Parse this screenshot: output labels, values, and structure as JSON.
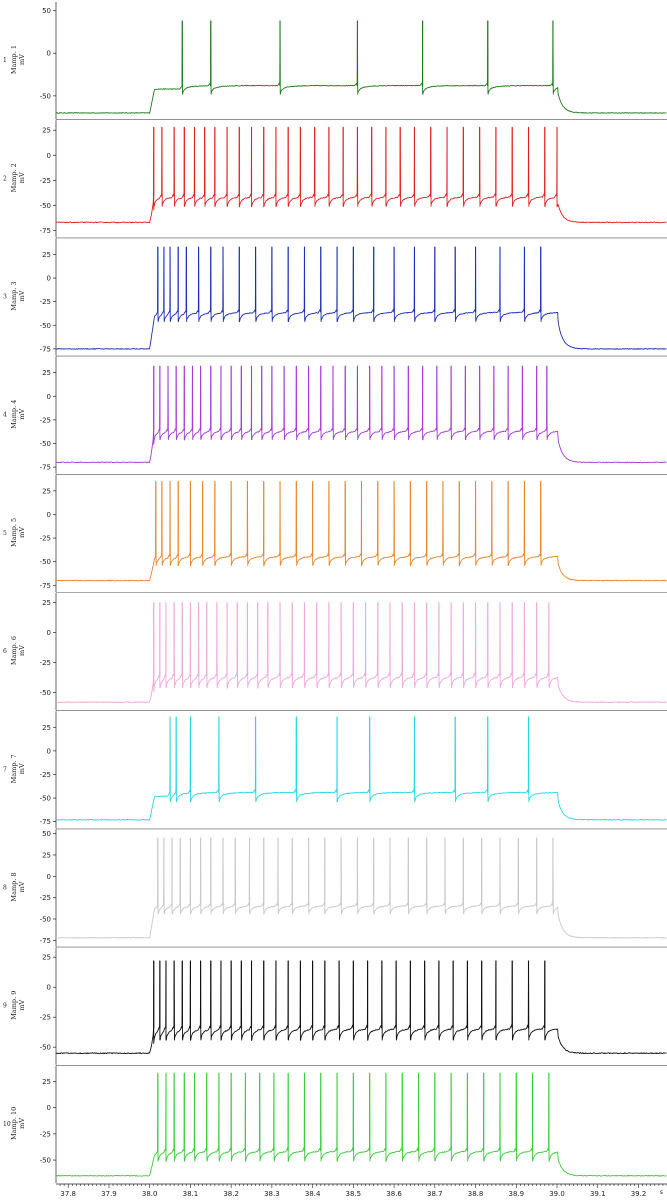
{
  "chart_data": {
    "type": "line",
    "x_axis": {
      "range": [
        37.77,
        39.27
      ],
      "ticks": [
        "37.8",
        "37.9",
        "38.0",
        "38.1",
        "38.2",
        "38.3",
        "38.4",
        "38.5",
        "38.6",
        "38.7",
        "38.8",
        "38.9",
        "39.0",
        "39.1",
        "39.2"
      ],
      "unit_label": "s"
    },
    "stimulus": {
      "start": 38.0,
      "end": 39.0
    },
    "panels": [
      {
        "index": "1",
        "label": "Mamp. 1",
        "unit": "mV",
        "color": "#1a7a1a",
        "ylim": [
          -75,
          60
        ],
        "ticks": [
          "50",
          "0",
          "-50"
        ],
        "rest": -70,
        "plateau": -42,
        "peak": 38,
        "spike_times": [
          38.08,
          38.15,
          38.32,
          38.51,
          38.67,
          38.83,
          38.99
        ]
      },
      {
        "index": "2",
        "label": "Mamp. 2",
        "unit": "mV",
        "color": "#e02020",
        "ylim": [
          -80,
          35
        ],
        "ticks": [
          "25",
          "0",
          "-25",
          "-50",
          "-75"
        ],
        "rest": -67,
        "plateau": -45,
        "peak": 28,
        "spike_times": [
          38.01,
          38.03,
          38.06,
          38.085,
          38.11,
          38.135,
          38.16,
          38.19,
          38.22,
          38.25,
          38.28,
          38.31,
          38.34,
          38.37,
          38.405,
          38.44,
          38.475,
          38.51,
          38.545,
          38.58,
          38.615,
          38.65,
          38.69,
          38.73,
          38.77,
          38.81,
          38.85,
          38.89,
          38.93,
          38.97,
          39.0
        ]
      },
      {
        "index": "3",
        "label": "Mamp. 3",
        "unit": "mV",
        "color": "#1c2fb8",
        "ylim": [
          -80,
          42
        ],
        "ticks": [
          "25",
          "0",
          "-25",
          "-50",
          "-75"
        ],
        "rest": -75,
        "plateau": -40,
        "peak": 33,
        "spike_times": [
          38.02,
          38.035,
          38.05,
          38.07,
          38.09,
          38.12,
          38.15,
          38.18,
          38.22,
          38.26,
          38.3,
          38.34,
          38.38,
          38.42,
          38.46,
          38.5,
          38.55,
          38.6,
          38.65,
          38.7,
          38.75,
          38.8,
          38.86,
          38.92,
          38.96
        ]
      },
      {
        "index": "4",
        "label": "Mamp. 4",
        "unit": "mV",
        "color": "#a83ad9",
        "ylim": [
          -80,
          42
        ],
        "ticks": [
          "25",
          "0",
          "-25",
          "-50",
          "-75"
        ],
        "rest": -70,
        "plateau": -40,
        "peak": 32,
        "spike_times": [
          38.01,
          38.025,
          38.045,
          38.065,
          38.085,
          38.105,
          38.125,
          38.15,
          38.175,
          38.2,
          38.225,
          38.25,
          38.275,
          38.3,
          38.33,
          38.36,
          38.39,
          38.42,
          38.45,
          38.48,
          38.51,
          38.54,
          38.57,
          38.6,
          38.635,
          38.67,
          38.705,
          38.74,
          38.775,
          38.81,
          38.845,
          38.88,
          38.915,
          38.95,
          38.975
        ]
      },
      {
        "index": "5",
        "label": "Mamp. 5",
        "unit": "mV",
        "color": "#e8862a",
        "ylim": [
          -80,
          42
        ],
        "ticks": [
          "25",
          "0",
          "-25",
          "-50",
          "-75"
        ],
        "rest": -70,
        "plateau": -48,
        "peak": 35,
        "spike_times": [
          38.015,
          38.03,
          38.05,
          38.07,
          38.1,
          38.13,
          38.16,
          38.2,
          38.24,
          38.28,
          38.32,
          38.36,
          38.4,
          38.44,
          38.48,
          38.52,
          38.56,
          38.6,
          38.64,
          38.68,
          38.72,
          38.76,
          38.8,
          38.84,
          38.88,
          38.92,
          38.96
        ]
      },
      {
        "index": "6",
        "label": "Mamp. 6",
        "unit": "mV",
        "color": "#f0a8e0",
        "ylim": [
          -63,
          33
        ],
        "ticks": [
          "25",
          "0",
          "-25",
          "-50"
        ],
        "rest": -58,
        "plateau": -40,
        "peak": 25,
        "spike_times": [
          38.01,
          38.025,
          38.04,
          38.06,
          38.08,
          38.1,
          38.12,
          38.14,
          38.165,
          38.19,
          38.215,
          38.24,
          38.265,
          38.29,
          38.32,
          38.35,
          38.38,
          38.41,
          38.44,
          38.47,
          38.5,
          38.53,
          38.56,
          38.59,
          38.62,
          38.65,
          38.68,
          38.71,
          38.74,
          38.77,
          38.8,
          38.83,
          38.86,
          38.89,
          38.92,
          38.95,
          38.98
        ]
      },
      {
        "index": "7",
        "label": "Mamp. 7",
        "unit": "mV",
        "color": "#25d8e6",
        "ylim": [
          -80,
          42
        ],
        "ticks": [
          "25",
          "0",
          "-25",
          "-50",
          "-75"
        ],
        "rest": -73,
        "plateau": -48,
        "peak": 36,
        "spike_times": [
          38.05,
          38.065,
          38.1,
          38.17,
          38.26,
          38.36,
          38.46,
          38.54,
          38.65,
          38.75,
          38.83,
          38.93
        ]
      },
      {
        "index": "8",
        "label": "Mamp. 8",
        "unit": "mV",
        "color": "#c8c8c8",
        "ylim": [
          -80,
          55
        ],
        "ticks": [
          "50",
          "25",
          "0",
          "-25",
          "-50",
          "-75"
        ],
        "rest": -72,
        "plateau": -38,
        "peak": 45,
        "spike_times": [
          38.02,
          38.035,
          38.055,
          38.075,
          38.1,
          38.125,
          38.15,
          38.18,
          38.21,
          38.245,
          38.28,
          38.315,
          38.35,
          38.39,
          38.43,
          38.47,
          38.51,
          38.55,
          38.59,
          38.635,
          38.68,
          38.725,
          38.77,
          38.815,
          38.86,
          38.905,
          38.95,
          38.99
        ]
      },
      {
        "index": "9",
        "label": "Mamp. 9",
        "unit": "mV",
        "color": "#111111",
        "ylim": [
          -63,
          33
        ],
        "ticks": [
          "25",
          "0",
          "-25",
          "-50"
        ],
        "rest": -55,
        "plateau": -38,
        "peak": 22,
        "spike_times": [
          38.01,
          38.025,
          38.04,
          38.06,
          38.08,
          38.1,
          38.125,
          38.15,
          38.175,
          38.2,
          38.225,
          38.25,
          38.28,
          38.31,
          38.34,
          38.37,
          38.4,
          38.43,
          38.465,
          38.5,
          38.535,
          38.57,
          38.605,
          38.64,
          38.675,
          38.71,
          38.745,
          38.78,
          38.815,
          38.85,
          38.89,
          38.93,
          38.97
        ]
      },
      {
        "index": "10",
        "label": "Mamp. 10",
        "unit": "mV",
        "color": "#3acd3a",
        "ylim": [
          -70,
          40
        ],
        "ticks": [
          "25",
          "0",
          "-25",
          "-50"
        ],
        "rest": -65,
        "plateau": -45,
        "peak": 33,
        "spike_times": [
          38.02,
          38.04,
          38.06,
          38.085,
          38.11,
          38.14,
          38.17,
          38.2,
          38.235,
          38.27,
          38.305,
          38.34,
          38.38,
          38.42,
          38.46,
          38.5,
          38.54,
          38.58,
          38.62,
          38.66,
          38.7,
          38.74,
          38.78,
          38.82,
          38.86,
          38.9,
          38.94,
          38.98
        ]
      }
    ]
  }
}
